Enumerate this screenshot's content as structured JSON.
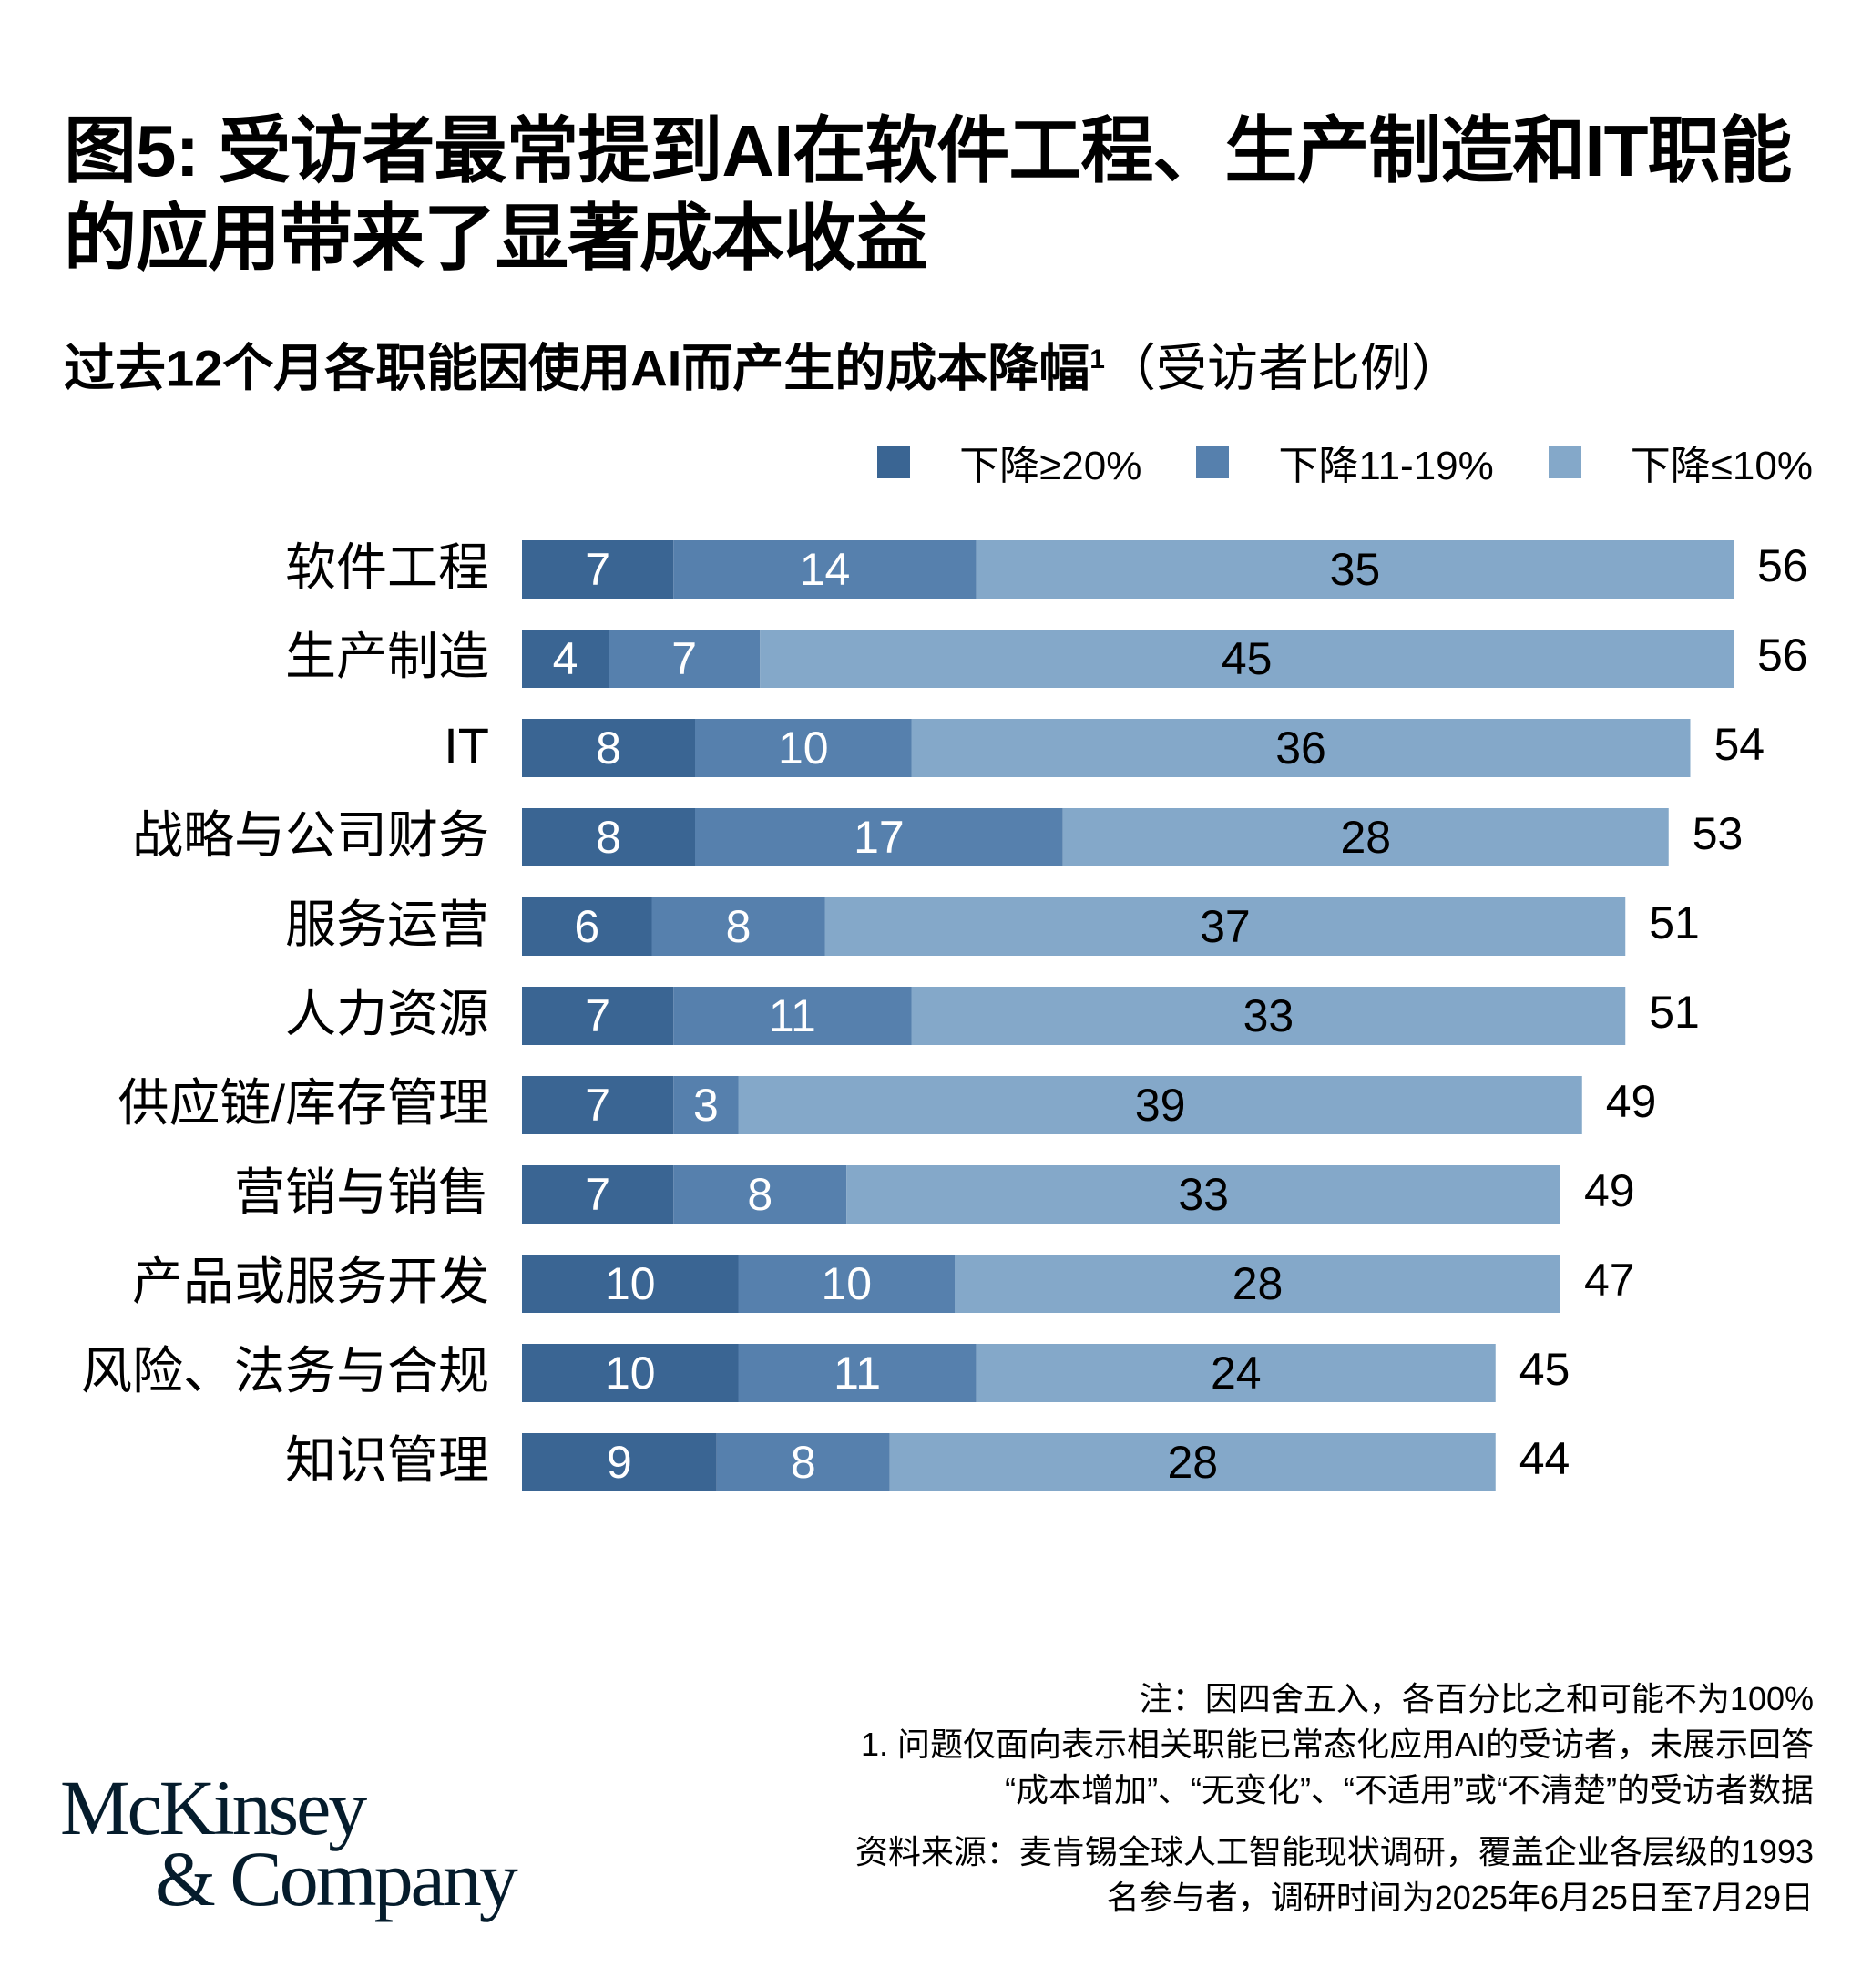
{
  "title": "图5: 受访者最常提到AI在软件工程、生产制造和IT职能的应用带来了显著成本收益",
  "subtitle": {
    "main": "过去12个月各职能因使用AI而产生的成本降幅",
    "footnote_mark": "1",
    "unit": "（受访者比例）"
  },
  "colors": {
    "ge20": "#3a6593",
    "r11_19": "#5680ad",
    "le10": "#84a8c9"
  },
  "chart_data": {
    "type": "bar",
    "orientation": "horizontal",
    "stacked": true,
    "legend_position": "top-right",
    "grid": false,
    "categories": [
      "软件工程",
      "生产制造",
      "IT",
      "战略与公司财务",
      "服务运营",
      "人力资源",
      "供应链/库存管理",
      "营销与销售",
      "产品或服务开发",
      "风险、法务与合规",
      "知识管理"
    ],
    "series": [
      {
        "name": "下降≥20%",
        "values": [
          7,
          4,
          8,
          8,
          6,
          7,
          7,
          7,
          10,
          10,
          9
        ]
      },
      {
        "name": "下降11-19%",
        "values": [
          14,
          7,
          10,
          17,
          8,
          11,
          3,
          8,
          10,
          11,
          8
        ]
      },
      {
        "name": "下降≤10%",
        "values": [
          35,
          45,
          36,
          28,
          37,
          33,
          39,
          33,
          28,
          24,
          28
        ]
      }
    ],
    "totals": [
      56,
      56,
      54,
      53,
      51,
      51,
      49,
      49,
      47,
      45,
      44
    ]
  },
  "footer": {
    "note": "注：因四舍五入，各百分比之和可能不为100%",
    "footnote1_line1": "1.   问题仅面向表示相关职能已常态化应用AI的受访者，未展示回答",
    "footnote1_line2": "“成本增加”、“无变化”、“不适用”或“不清楚”的受访者数据",
    "source_line1": "资料来源：麦肯锡全球人工智能现状调研，覆盖企业各层级的1993",
    "source_line2": "名参与者，调研时间为2025年6月25日至7月29日"
  },
  "logo": {
    "line1": "McKinsey",
    "line2": "& Company"
  }
}
